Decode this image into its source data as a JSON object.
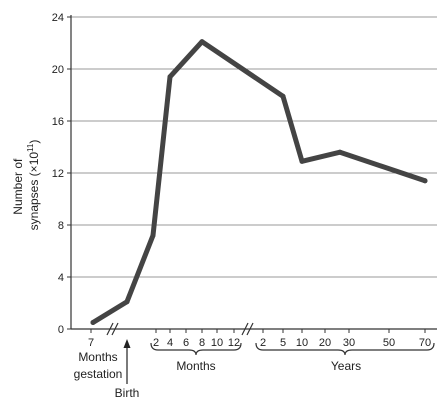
{
  "chart_data": {
    "type": "line",
    "title": "",
    "ylabel_line1": "Number of",
    "ylabel_line2": "synapses (×10",
    "ylabel_sup": "11",
    "ylabel_close": ")",
    "ylim": [
      0,
      24
    ],
    "yticks": [
      0,
      4,
      8,
      12,
      16,
      20,
      24
    ],
    "grid": true,
    "xtick_labels": [
      "7",
      "2",
      "4",
      "6",
      "8",
      "10",
      "12",
      "2",
      "5",
      "10",
      "20",
      "30",
      "50",
      "70"
    ],
    "group_labels": {
      "gestation_line1": "Months",
      "gestation_line2": "gestation",
      "birth": "Birth",
      "months": "Months",
      "years": "Years"
    },
    "series": [
      {
        "points": [
          {
            "x": "7 months gestation",
            "y": 0.5
          },
          {
            "x": "Birth",
            "y": 2.1
          },
          {
            "x": "2 months",
            "y": 7.2
          },
          {
            "x": "4 months",
            "y": 19.4
          },
          {
            "x": "8 months",
            "y": 22.1
          },
          {
            "x": "5 years",
            "y": 17.9
          },
          {
            "x": "10 years",
            "y": 12.9
          },
          {
            "x": "25 years",
            "y": 13.6
          },
          {
            "x": "70 years",
            "y": 11.4
          }
        ],
        "color": "#444444"
      }
    ]
  }
}
